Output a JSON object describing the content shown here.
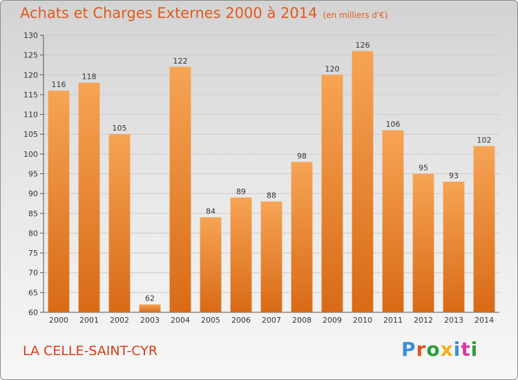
{
  "header": {
    "title": "Achats et Charges Externes 2000 à 2014",
    "unit": "(en milliers d'€)"
  },
  "footer": {
    "city": "LA CELLE-SAINT-CYR",
    "logo_text": "Proxiti"
  },
  "colors": {
    "bar_top": "#f6a454",
    "bar_bottom": "#d96a16",
    "title": "#e05a1c",
    "city": "#d63c16"
  },
  "chart_data": {
    "type": "bar",
    "title": "Achats et Charges Externes 2000 à 2014",
    "subtitle": "(en milliers d'€)",
    "categories": [
      "2000",
      "2001",
      "2002",
      "2003",
      "2004",
      "2005",
      "2006",
      "2007",
      "2008",
      "2009",
      "2010",
      "2011",
      "2012",
      "2013",
      "2014"
    ],
    "values": [
      116,
      118,
      105,
      62,
      122,
      84,
      89,
      88,
      98,
      120,
      126,
      106,
      95,
      93,
      102
    ],
    "data_labels": [
      "116",
      "118",
      "105",
      "62",
      "122",
      "84",
      "89",
      "88",
      "98",
      "120",
      "126",
      "106",
      "95",
      "93",
      "102"
    ],
    "ylim": [
      60,
      130
    ],
    "yticks": [
      60,
      65,
      70,
      75,
      80,
      85,
      90,
      95,
      100,
      105,
      110,
      115,
      120,
      125,
      130
    ],
    "grid": true,
    "legend": "none"
  }
}
